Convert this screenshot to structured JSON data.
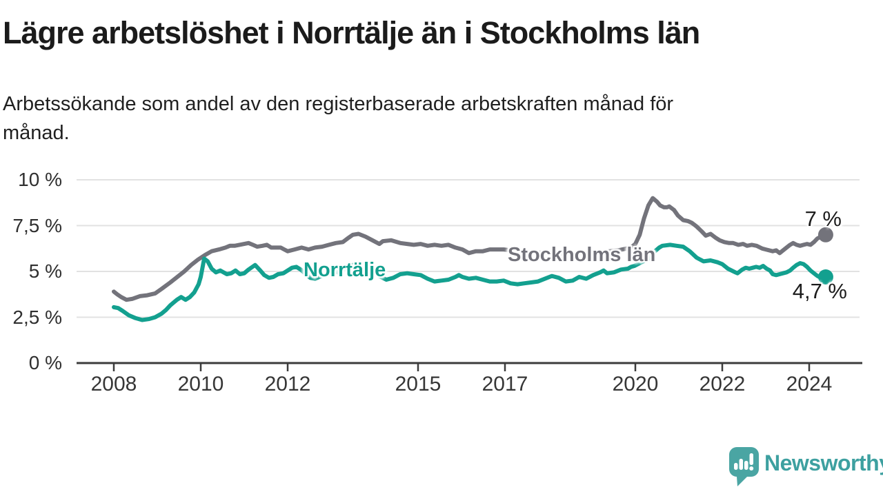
{
  "title": "Lägre arbetslöshet i Norrtälje än i Stockholms län",
  "subtitle_lines": [
    "Arbetssökande som andel av den registerbaserade arbetskraften månad för",
    "månad."
  ],
  "footer": {
    "brand": "Newsworthy"
  },
  "colors": {
    "norrtalje": "#13a08f",
    "stockholm": "#73737b",
    "grid": "#e2e2e2",
    "axis": "#3b3b3b",
    "label_text": "#1c1c1c",
    "logo": "#4aa5a3",
    "logo_text": "#3da0a0"
  },
  "chart_data": {
    "type": "line",
    "unit": "%",
    "title": "Lägre arbetslöshet i Norrtälje än i Stockholms län",
    "subtitle": "Arbetssökande som andel av den registerbaserade arbetskraften månad för månad.",
    "grid": true,
    "legend_position": "inline-labels",
    "x_axis": {
      "tick_years": [
        2008,
        2010,
        2012,
        2015,
        2017,
        2020,
        2022,
        2024
      ],
      "range": [
        2007.1,
        2025.2
      ]
    },
    "y_axis": {
      "range": [
        0,
        10
      ],
      "ticks": [
        {
          "value": 0,
          "label": "0 %"
        },
        {
          "value": 2.5,
          "label": "2,5 %"
        },
        {
          "value": 5,
          "label": "5 %"
        },
        {
          "value": 7.5,
          "label": "7,5 %"
        },
        {
          "value": 10,
          "label": "10 %"
        }
      ]
    },
    "series": [
      {
        "name": "Stockholms län",
        "color": "#73737b",
        "end_label": "7 %",
        "end_value": 7.0,
        "points": [
          [
            2008.0,
            3.9
          ],
          [
            2008.08,
            3.75
          ],
          [
            2008.17,
            3.6
          ],
          [
            2008.29,
            3.45
          ],
          [
            2008.42,
            3.5
          ],
          [
            2008.6,
            3.65
          ],
          [
            2008.77,
            3.7
          ],
          [
            2008.95,
            3.8
          ],
          [
            2009.1,
            4.05
          ],
          [
            2009.3,
            4.4
          ],
          [
            2009.46,
            4.7
          ],
          [
            2009.62,
            5.0
          ],
          [
            2009.78,
            5.35
          ],
          [
            2009.94,
            5.65
          ],
          [
            2010.1,
            5.9
          ],
          [
            2010.25,
            6.1
          ],
          [
            2010.42,
            6.2
          ],
          [
            2010.57,
            6.3
          ],
          [
            2010.67,
            6.4
          ],
          [
            2010.78,
            6.4
          ],
          [
            2010.89,
            6.45
          ],
          [
            2011.0,
            6.5
          ],
          [
            2011.1,
            6.55
          ],
          [
            2011.2,
            6.45
          ],
          [
            2011.3,
            6.35
          ],
          [
            2011.42,
            6.4
          ],
          [
            2011.52,
            6.45
          ],
          [
            2011.62,
            6.3
          ],
          [
            2011.73,
            6.3
          ],
          [
            2011.84,
            6.3
          ],
          [
            2011.92,
            6.2
          ],
          [
            2012.0,
            6.1
          ],
          [
            2012.16,
            6.2
          ],
          [
            2012.32,
            6.3
          ],
          [
            2012.48,
            6.2
          ],
          [
            2012.63,
            6.3
          ],
          [
            2012.79,
            6.35
          ],
          [
            2012.95,
            6.45
          ],
          [
            2013.11,
            6.55
          ],
          [
            2013.27,
            6.6
          ],
          [
            2013.38,
            6.8
          ],
          [
            2013.5,
            7.0
          ],
          [
            2013.63,
            7.05
          ],
          [
            2013.79,
            6.9
          ],
          [
            2013.95,
            6.7
          ],
          [
            2014.11,
            6.5
          ],
          [
            2014.19,
            6.65
          ],
          [
            2014.38,
            6.7
          ],
          [
            2014.59,
            6.55
          ],
          [
            2014.75,
            6.5
          ],
          [
            2014.9,
            6.45
          ],
          [
            2015.06,
            6.5
          ],
          [
            2015.22,
            6.4
          ],
          [
            2015.38,
            6.45
          ],
          [
            2015.54,
            6.4
          ],
          [
            2015.7,
            6.45
          ],
          [
            2015.86,
            6.3
          ],
          [
            2016.02,
            6.2
          ],
          [
            2016.17,
            6.0
          ],
          [
            2016.33,
            6.1
          ],
          [
            2016.49,
            6.1
          ],
          [
            2016.65,
            6.2
          ],
          [
            2016.81,
            6.2
          ],
          [
            2016.97,
            6.2
          ],
          [
            2017.3,
            6.1
          ],
          [
            2017.6,
            6.05
          ],
          [
            2018.0,
            6.0
          ],
          [
            2018.4,
            5.95
          ],
          [
            2018.8,
            6.0
          ],
          [
            2019.2,
            6.05
          ],
          [
            2019.6,
            6.15
          ],
          [
            2019.9,
            6.3
          ],
          [
            2020.0,
            6.5
          ],
          [
            2020.1,
            7.0
          ],
          [
            2020.2,
            7.9
          ],
          [
            2020.3,
            8.6
          ],
          [
            2020.4,
            9.0
          ],
          [
            2020.5,
            8.8
          ],
          [
            2020.57,
            8.6
          ],
          [
            2020.66,
            8.5
          ],
          [
            2020.73,
            8.5
          ],
          [
            2020.78,
            8.55
          ],
          [
            2020.89,
            8.35
          ],
          [
            2020.98,
            8.05
          ],
          [
            2021.1,
            7.8
          ],
          [
            2021.21,
            7.75
          ],
          [
            2021.3,
            7.65
          ],
          [
            2021.41,
            7.45
          ],
          [
            2021.52,
            7.2
          ],
          [
            2021.62,
            6.95
          ],
          [
            2021.73,
            7.05
          ],
          [
            2021.84,
            6.85
          ],
          [
            2021.94,
            6.7
          ],
          [
            2022.05,
            6.6
          ],
          [
            2022.16,
            6.55
          ],
          [
            2022.25,
            6.55
          ],
          [
            2022.37,
            6.45
          ],
          [
            2022.48,
            6.5
          ],
          [
            2022.57,
            6.4
          ],
          [
            2022.68,
            6.45
          ],
          [
            2022.79,
            6.4
          ],
          [
            2022.92,
            6.25
          ],
          [
            2023.0,
            6.2
          ],
          [
            2023.16,
            6.1
          ],
          [
            2023.24,
            6.15
          ],
          [
            2023.32,
            6.0
          ],
          [
            2023.48,
            6.3
          ],
          [
            2023.56,
            6.45
          ],
          [
            2023.63,
            6.55
          ],
          [
            2023.71,
            6.45
          ],
          [
            2023.79,
            6.4
          ],
          [
            2023.87,
            6.45
          ],
          [
            2023.95,
            6.5
          ],
          [
            2024.03,
            6.45
          ],
          [
            2024.11,
            6.6
          ],
          [
            2024.19,
            6.8
          ],
          [
            2024.27,
            6.9
          ],
          [
            2024.31,
            6.8
          ],
          [
            2024.38,
            7.0
          ]
        ]
      },
      {
        "name": "Norrtälje",
        "color": "#13a08f",
        "end_label": "4,7 %",
        "end_value": 4.7,
        "points": [
          [
            2008.0,
            3.05
          ],
          [
            2008.1,
            3.0
          ],
          [
            2008.2,
            2.85
          ],
          [
            2008.35,
            2.6
          ],
          [
            2008.5,
            2.45
          ],
          [
            2008.65,
            2.35
          ],
          [
            2008.8,
            2.4
          ],
          [
            2008.95,
            2.5
          ],
          [
            2009.1,
            2.7
          ],
          [
            2009.2,
            2.9
          ],
          [
            2009.3,
            3.15
          ],
          [
            2009.45,
            3.45
          ],
          [
            2009.55,
            3.6
          ],
          [
            2009.65,
            3.45
          ],
          [
            2009.75,
            3.6
          ],
          [
            2009.85,
            3.85
          ],
          [
            2009.95,
            4.3
          ],
          [
            2010.0,
            4.7
          ],
          [
            2010.08,
            5.7
          ],
          [
            2010.16,
            5.55
          ],
          [
            2010.25,
            5.15
          ],
          [
            2010.35,
            4.95
          ],
          [
            2010.45,
            5.05
          ],
          [
            2010.6,
            4.85
          ],
          [
            2010.7,
            4.9
          ],
          [
            2010.8,
            5.05
          ],
          [
            2010.9,
            4.85
          ],
          [
            2011.0,
            4.9
          ],
          [
            2011.1,
            5.1
          ],
          [
            2011.25,
            5.35
          ],
          [
            2011.37,
            5.05
          ],
          [
            2011.46,
            4.8
          ],
          [
            2011.57,
            4.65
          ],
          [
            2011.67,
            4.7
          ],
          [
            2011.78,
            4.85
          ],
          [
            2011.9,
            4.9
          ],
          [
            2012.0,
            5.05
          ],
          [
            2012.1,
            5.2
          ],
          [
            2012.2,
            5.25
          ],
          [
            2012.3,
            5.1
          ],
          [
            2012.42,
            4.85
          ],
          [
            2012.52,
            4.65
          ],
          [
            2012.63,
            4.6
          ],
          [
            2012.73,
            4.7
          ],
          [
            2012.84,
            4.8
          ],
          [
            2012.95,
            4.85
          ],
          [
            2013.05,
            5.05
          ],
          [
            2013.15,
            4.95
          ],
          [
            2013.27,
            5.1
          ],
          [
            2013.4,
            5.25
          ],
          [
            2013.5,
            5.35
          ],
          [
            2013.65,
            5.15
          ],
          [
            2013.8,
            5.05
          ],
          [
            2013.95,
            4.95
          ],
          [
            2014.1,
            4.75
          ],
          [
            2014.27,
            4.55
          ],
          [
            2014.43,
            4.65
          ],
          [
            2014.59,
            4.85
          ],
          [
            2014.75,
            4.9
          ],
          [
            2014.9,
            4.85
          ],
          [
            2015.06,
            4.8
          ],
          [
            2015.22,
            4.6
          ],
          [
            2015.38,
            4.45
          ],
          [
            2015.54,
            4.5
          ],
          [
            2015.7,
            4.55
          ],
          [
            2015.86,
            4.7
          ],
          [
            2015.94,
            4.8
          ],
          [
            2016.02,
            4.7
          ],
          [
            2016.17,
            4.6
          ],
          [
            2016.33,
            4.65
          ],
          [
            2016.49,
            4.55
          ],
          [
            2016.65,
            4.45
          ],
          [
            2016.81,
            4.45
          ],
          [
            2016.97,
            4.5
          ],
          [
            2017.13,
            4.35
          ],
          [
            2017.29,
            4.3
          ],
          [
            2017.44,
            4.35
          ],
          [
            2017.6,
            4.4
          ],
          [
            2017.76,
            4.45
          ],
          [
            2017.92,
            4.6
          ],
          [
            2018.08,
            4.75
          ],
          [
            2018.24,
            4.65
          ],
          [
            2018.4,
            4.45
          ],
          [
            2018.56,
            4.5
          ],
          [
            2018.71,
            4.7
          ],
          [
            2018.87,
            4.6
          ],
          [
            2019.03,
            4.8
          ],
          [
            2019.19,
            4.95
          ],
          [
            2019.27,
            5.05
          ],
          [
            2019.35,
            4.9
          ],
          [
            2019.51,
            4.95
          ],
          [
            2019.67,
            5.1
          ],
          [
            2019.83,
            5.15
          ],
          [
            2019.9,
            5.25
          ],
          [
            2019.98,
            5.3
          ],
          [
            2020.14,
            5.5
          ],
          [
            2020.3,
            5.7
          ],
          [
            2020.45,
            6.1
          ],
          [
            2020.55,
            6.3
          ],
          [
            2020.62,
            6.4
          ],
          [
            2020.8,
            6.45
          ],
          [
            2020.95,
            6.4
          ],
          [
            2021.1,
            6.35
          ],
          [
            2021.25,
            6.1
          ],
          [
            2021.41,
            5.75
          ],
          [
            2021.57,
            5.55
          ],
          [
            2021.73,
            5.6
          ],
          [
            2021.89,
            5.5
          ],
          [
            2022.0,
            5.4
          ],
          [
            2022.13,
            5.15
          ],
          [
            2022.3,
            4.95
          ],
          [
            2022.35,
            4.9
          ],
          [
            2022.46,
            5.1
          ],
          [
            2022.54,
            5.2
          ],
          [
            2022.62,
            5.15
          ],
          [
            2022.7,
            5.2
          ],
          [
            2022.78,
            5.25
          ],
          [
            2022.86,
            5.2
          ],
          [
            2022.94,
            5.3
          ],
          [
            2023.02,
            5.15
          ],
          [
            2023.1,
            5.05
          ],
          [
            2023.16,
            4.85
          ],
          [
            2023.24,
            4.8
          ],
          [
            2023.32,
            4.85
          ],
          [
            2023.48,
            4.95
          ],
          [
            2023.56,
            5.05
          ],
          [
            2023.63,
            5.2
          ],
          [
            2023.71,
            5.35
          ],
          [
            2023.79,
            5.45
          ],
          [
            2023.87,
            5.4
          ],
          [
            2023.95,
            5.25
          ],
          [
            2024.03,
            5.05
          ],
          [
            2024.11,
            4.9
          ],
          [
            2024.19,
            4.75
          ],
          [
            2024.27,
            4.65
          ],
          [
            2024.38,
            4.7
          ]
        ]
      }
    ]
  }
}
